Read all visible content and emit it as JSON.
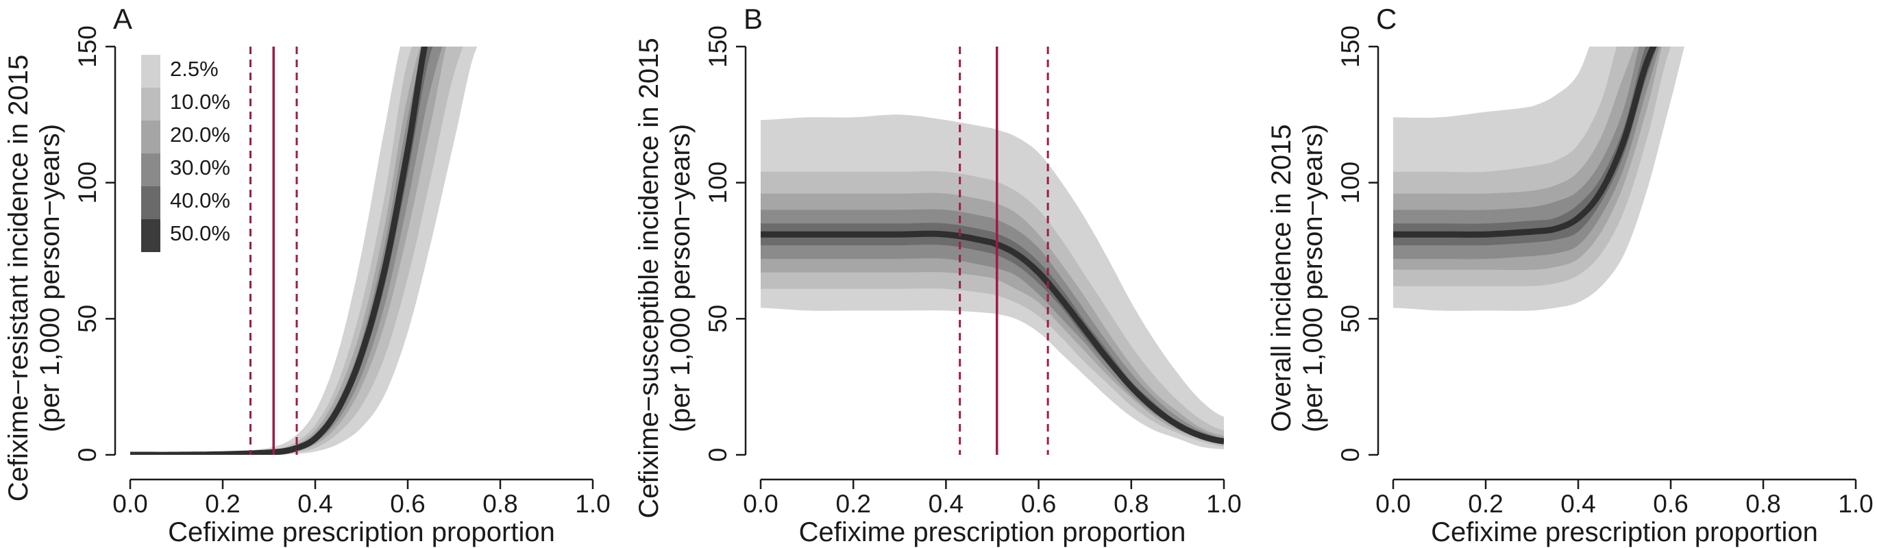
{
  "chart_data": [
    {
      "type": "area",
      "panel_label": "A",
      "xlabel": "Cefixime prescription proportion",
      "ylabel_line1": "Cefixime−resistant incidence in 2015",
      "ylabel_line2": "(per 1,000 person−years)",
      "xlim": [
        0,
        1
      ],
      "ylim": [
        0,
        150
      ],
      "x_ticks": [
        "0.0",
        "0.2",
        "0.4",
        "0.6",
        "0.8",
        "1.0"
      ],
      "y_ticks": [
        "0",
        "50",
        "100",
        "150"
      ],
      "grid": false,
      "legend": {
        "placement": "top-left",
        "entries": [
          "2.5%",
          "10.0%",
          "20.0%",
          "30.0%",
          "40.0%",
          "50.0%"
        ],
        "colors": [
          "#d2d2d2",
          "#bdbdbd",
          "#a5a5a5",
          "#8a8a8a",
          "#6a6a6a",
          "#3c3c3c"
        ]
      },
      "reference_lines": [
        {
          "x": 0.31,
          "style": "solid",
          "color": "#9e1b46"
        },
        {
          "x": 0.26,
          "style": "dashed",
          "color": "#9e1b46"
        },
        {
          "x": 0.36,
          "style": "dashed",
          "color": "#9e1b46"
        }
      ],
      "x": [
        0.0,
        0.1,
        0.2,
        0.3,
        0.35,
        0.4,
        0.45,
        0.5,
        0.55,
        0.6,
        0.65,
        0.7,
        0.75
      ],
      "median": [
        0,
        0,
        0.2,
        0.8,
        2,
        6,
        17,
        37,
        68,
        112,
        160,
        160,
        160
      ],
      "bands": [
        {
          "quantile": "2.5%",
          "lower": [
            0,
            0,
            0,
            0.1,
            0.3,
            1.2,
            4,
            10,
            22,
            45,
            78,
            115,
            150
          ],
          "upper": [
            0,
            0.2,
            0.8,
            2.5,
            6,
            16,
            38,
            74,
            120,
            160,
            160,
            160,
            160
          ]
        },
        {
          "quantile": "10.0%",
          "lower": [
            0,
            0,
            0.1,
            0.3,
            0.8,
            2.5,
            8,
            18,
            36,
            65,
            102,
            140,
            160
          ],
          "upper": [
            0,
            0.1,
            0.5,
            1.6,
            4,
            11,
            27,
            55,
            95,
            145,
            160,
            160,
            160
          ]
        },
        {
          "quantile": "20.0%",
          "lower": [
            0,
            0,
            0.1,
            0.5,
            1.2,
            3.8,
            11,
            25,
            48,
            82,
            122,
            160,
            160
          ],
          "upper": [
            0,
            0.1,
            0.4,
            1.2,
            3,
            9,
            23,
            47,
            84,
            132,
            160,
            160,
            160
          ]
        },
        {
          "quantile": "30.0%",
          "lower": [
            0,
            0,
            0.15,
            0.6,
            1.5,
            4.6,
            13,
            29,
            55,
            93,
            135,
            160,
            160
          ],
          "upper": [
            0,
            0.05,
            0.3,
            1,
            2.6,
            7.8,
            20,
            42,
            77,
            124,
            160,
            160,
            160
          ]
        },
        {
          "quantile": "40.0%",
          "lower": [
            0,
            0,
            0.18,
            0.7,
            1.8,
            5.3,
            15,
            33,
            62,
            103,
            148,
            160,
            160
          ],
          "upper": [
            0,
            0.03,
            0.25,
            0.9,
            2.3,
            6.8,
            18.5,
            40,
            73,
            118,
            160,
            160,
            160
          ]
        }
      ]
    },
    {
      "type": "area",
      "panel_label": "B",
      "xlabel": "Cefixime prescription proportion",
      "ylabel_line1": "Cefixime−susceptible incidence in 2015",
      "ylabel_line2": "(per 1,000 person−years)",
      "xlim": [
        0,
        1
      ],
      "ylim": [
        0,
        150
      ],
      "x_ticks": [
        "0.0",
        "0.2",
        "0.4",
        "0.6",
        "0.8",
        "1.0"
      ],
      "y_ticks": [
        "0",
        "50",
        "100",
        "150"
      ],
      "grid": false,
      "reference_lines": [
        {
          "x": 0.51,
          "style": "solid",
          "color": "#9e1b46"
        },
        {
          "x": 0.43,
          "style": "dashed",
          "color": "#9e1b46"
        },
        {
          "x": 0.62,
          "style": "dashed",
          "color": "#9e1b46"
        }
      ],
      "x": [
        0.0,
        0.1,
        0.2,
        0.3,
        0.4,
        0.5,
        0.55,
        0.6,
        0.65,
        0.7,
        0.75,
        0.8,
        0.85,
        0.9,
        0.95,
        1.0
      ],
      "median": [
        81,
        81,
        81,
        81,
        81,
        78,
        74,
        67,
        57,
        46,
        35,
        25,
        17,
        11,
        7,
        5
      ],
      "bands": [
        {
          "quantile": "2.5%",
          "lower": [
            54,
            53,
            53,
            53,
            53,
            52,
            50,
            45,
            37,
            29,
            21,
            14,
            9,
            6,
            3,
            2
          ],
          "upper": [
            123,
            124,
            124,
            125,
            123,
            120,
            117,
            111,
            100,
            87,
            72,
            56,
            42,
            30,
            20,
            14
          ]
        },
        {
          "quantile": "10.0%",
          "lower": [
            61,
            61,
            61,
            61,
            61,
            59,
            56,
            51,
            43,
            34,
            26,
            18,
            12,
            8,
            5,
            3
          ],
          "upper": [
            104,
            104,
            104,
            104,
            104,
            101,
            97,
            90,
            79,
            66,
            53,
            40,
            29,
            20,
            13,
            9
          ]
        },
        {
          "quantile": "20.0%",
          "lower": [
            67,
            67,
            67,
            67,
            67,
            65,
            61,
            56,
            47,
            38,
            29,
            21,
            14,
            9,
            6,
            4
          ],
          "upper": [
            96,
            96,
            96,
            96,
            96,
            93,
            89,
            81,
            70,
            58,
            45,
            33,
            23,
            16,
            10,
            7
          ]
        },
        {
          "quantile": "30.0%",
          "lower": [
            72,
            72,
            72,
            72,
            72,
            69,
            66,
            59,
            50,
            41,
            31,
            22,
            15,
            10,
            6,
            4
          ],
          "upper": [
            90,
            90,
            90,
            90,
            90,
            87,
            83,
            76,
            65,
            53,
            41,
            30,
            21,
            14,
            9,
            6
          ]
        },
        {
          "quantile": "40.0%",
          "lower": [
            77,
            77,
            77,
            77,
            77,
            74,
            70,
            63,
            54,
            43,
            33,
            24,
            16,
            10,
            7,
            4.5
          ],
          "upper": [
            85,
            85,
            85,
            85,
            85,
            82,
            78,
            71,
            61,
            49,
            38,
            27,
            19,
            12,
            8,
            5.5
          ]
        }
      ]
    },
    {
      "type": "area",
      "panel_label": "C",
      "xlabel": "Cefixime prescription proportion",
      "ylabel_line1": "Overall incidence in 2015",
      "ylabel_line2": "(per 1,000 person−years)",
      "xlim": [
        0,
        1
      ],
      "ylim": [
        0,
        150
      ],
      "x_ticks": [
        "0.0",
        "0.2",
        "0.4",
        "0.6",
        "0.8",
        "1.0"
      ],
      "y_ticks": [
        "0",
        "50",
        "100",
        "150"
      ],
      "grid": false,
      "x": [
        0.0,
        0.1,
        0.2,
        0.3,
        0.35,
        0.4,
        0.45,
        0.5,
        0.55,
        0.6,
        0.65,
        0.7
      ],
      "median": [
        81,
        81,
        81,
        82,
        83,
        87,
        97,
        116,
        145,
        160,
        160,
        160
      ],
      "bands": [
        {
          "quantile": "2.5%",
          "lower": [
            54,
            53,
            53,
            53,
            54,
            56,
            62,
            74,
            98,
            130,
            160,
            160
          ],
          "upper": [
            124,
            124,
            126,
            128,
            132,
            140,
            160,
            160,
            160,
            160,
            160,
            160
          ]
        },
        {
          "quantile": "10.0%",
          "lower": [
            62,
            62,
            62,
            62,
            63,
            66,
            74,
            90,
            117,
            150,
            160,
            160
          ],
          "upper": [
            104,
            104,
            104,
            106,
            108,
            114,
            130,
            158,
            160,
            160,
            160,
            160
          ]
        },
        {
          "quantile": "20.0%",
          "lower": [
            68,
            68,
            68,
            68,
            69,
            72,
            82,
            100,
            128,
            160,
            160,
            160
          ],
          "upper": [
            96,
            96,
            96,
            97,
            99,
            104,
            117,
            140,
            160,
            160,
            160,
            160
          ]
        },
        {
          "quantile": "30.0%",
          "lower": [
            72,
            72,
            72,
            73,
            74,
            77,
            88,
            106,
            135,
            160,
            160,
            160
          ],
          "upper": [
            90,
            90,
            90,
            91,
            93,
            97,
            108,
            128,
            160,
            160,
            160,
            160
          ]
        },
        {
          "quantile": "40.0%",
          "lower": [
            77,
            77,
            77,
            78,
            79,
            82,
            93,
            111,
            140,
            160,
            160,
            160
          ],
          "upper": [
            85,
            85,
            85,
            86,
            87,
            92,
            102,
            121,
            152,
            160,
            160,
            160
          ]
        }
      ]
    }
  ]
}
